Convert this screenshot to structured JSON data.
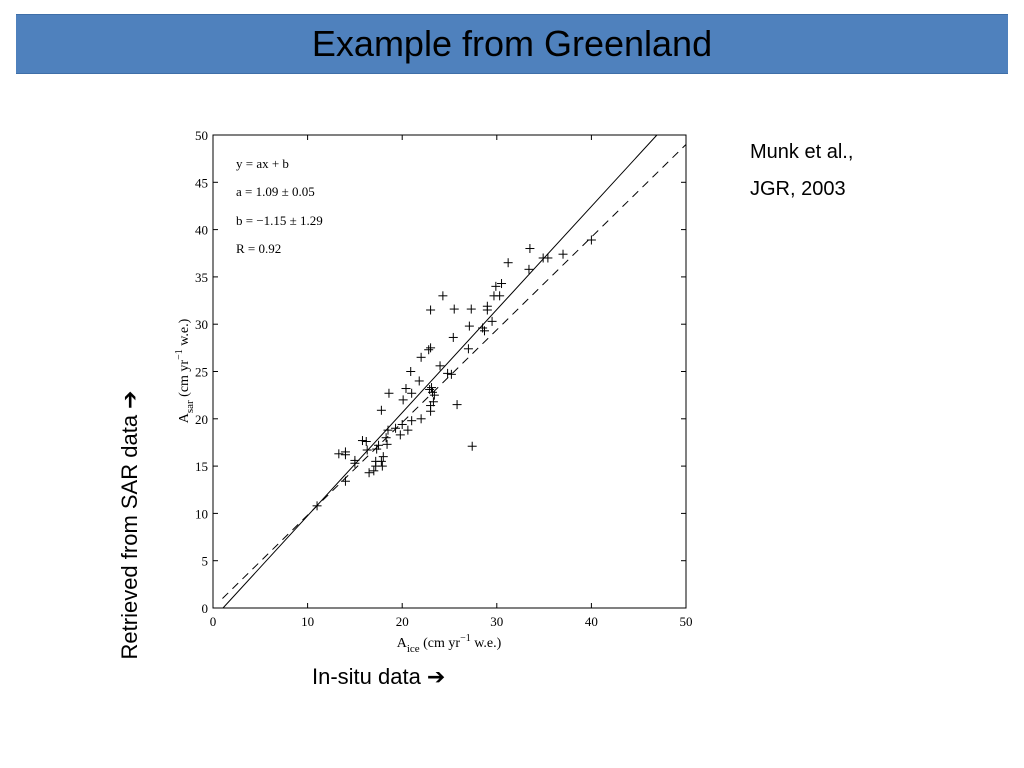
{
  "slide": {
    "title": "Example from Greenland",
    "citation_line1": "Munk et al.,",
    "citation_line2": "JGR, 2003",
    "side_label_y": "Retrieved from SAR data",
    "side_label_x": "In-situ data",
    "arrow_icon": "right-arrow-icon",
    "arrow_glyph": "➔",
    "title_bar_color": "#4f81bd"
  },
  "chart_data": {
    "type": "scatter",
    "xlabel_main": "A",
    "xlabel_sub": "ice",
    "xlabel_unit": " (cm yr",
    "xlabel_sup": "−1",
    "xlabel_tail": " w.e.)",
    "ylabel_main": "A",
    "ylabel_sub": "sar",
    "ylabel_unit": " (cm yr",
    "ylabel_sup": "−1",
    "ylabel_tail": " w.e.)",
    "xlim": [
      0,
      50
    ],
    "ylim": [
      0,
      50
    ],
    "xticks": [
      0,
      10,
      20,
      30,
      40,
      50
    ],
    "yticks": [
      0,
      5,
      10,
      15,
      20,
      25,
      30,
      35,
      40,
      45,
      50
    ],
    "grid": false,
    "annotations": [
      "y = ax + b",
      "a = 1.09 ± 0.05",
      "b = −1.15 ± 1.29",
      "R = 0.92"
    ],
    "marker": "+",
    "points": [
      [
        11.0,
        10.8
      ],
      [
        13.3,
        16.3
      ],
      [
        14.0,
        16.2
      ],
      [
        14.0,
        16.5
      ],
      [
        14.0,
        13.4
      ],
      [
        15.0,
        15.6
      ],
      [
        15.0,
        15.3
      ],
      [
        15.8,
        17.7
      ],
      [
        16.2,
        17.6
      ],
      [
        16.3,
        16.7
      ],
      [
        16.5,
        14.3
      ],
      [
        17.0,
        14.5
      ],
      [
        17.2,
        15.0
      ],
      [
        17.2,
        15.5
      ],
      [
        17.3,
        16.8
      ],
      [
        17.5,
        17.2
      ],
      [
        17.8,
        15.5
      ],
      [
        17.9,
        15.0
      ],
      [
        18.0,
        16.0
      ],
      [
        18.3,
        18.0
      ],
      [
        18.4,
        17.3
      ],
      [
        18.5,
        18.8
      ],
      [
        18.6,
        22.7
      ],
      [
        17.8,
        20.9
      ],
      [
        19.3,
        19.0
      ],
      [
        19.8,
        18.3
      ],
      [
        20.0,
        19.4
      ],
      [
        20.1,
        22.0
      ],
      [
        20.4,
        23.2
      ],
      [
        20.6,
        18.8
      ],
      [
        20.9,
        25.0
      ],
      [
        21.0,
        22.7
      ],
      [
        21.0,
        19.8
      ],
      [
        21.8,
        24.0
      ],
      [
        22.0,
        20.0
      ],
      [
        22.0,
        26.5
      ],
      [
        22.9,
        23.1
      ],
      [
        23.0,
        27.5
      ],
      [
        23.0,
        31.5
      ],
      [
        22.8,
        27.3
      ],
      [
        23.0,
        21.4
      ],
      [
        23.0,
        20.8
      ],
      [
        23.1,
        23.3
      ],
      [
        23.2,
        22.8
      ],
      [
        23.3,
        21.8
      ],
      [
        23.4,
        22.5
      ],
      [
        24.0,
        25.6
      ],
      [
        24.3,
        33.0
      ],
      [
        24.8,
        24.8
      ],
      [
        25.2,
        24.7
      ],
      [
        25.4,
        28.6
      ],
      [
        25.5,
        31.6
      ],
      [
        25.8,
        21.5
      ],
      [
        27.0,
        27.4
      ],
      [
        27.1,
        29.8
      ],
      [
        27.3,
        31.6
      ],
      [
        27.4,
        17.1
      ],
      [
        28.5,
        29.6
      ],
      [
        28.7,
        29.3
      ],
      [
        29.0,
        31.5
      ],
      [
        29.0,
        31.9
      ],
      [
        29.5,
        30.3
      ],
      [
        29.7,
        33.0
      ],
      [
        29.9,
        34.0
      ],
      [
        30.3,
        33.0
      ],
      [
        30.5,
        34.3
      ],
      [
        31.2,
        36.5
      ],
      [
        33.4,
        35.8
      ],
      [
        33.5,
        38.0
      ],
      [
        34.9,
        37.0
      ],
      [
        35.4,
        37.0
      ],
      [
        37.0,
        37.4
      ],
      [
        40.0,
        38.9
      ]
    ],
    "fit_line": {
      "style": "solid",
      "slope": 1.09,
      "intercept": -1.15
    },
    "reference_line": {
      "style": "dashed",
      "x": [
        1,
        50
      ],
      "y": [
        1,
        49
      ]
    }
  }
}
